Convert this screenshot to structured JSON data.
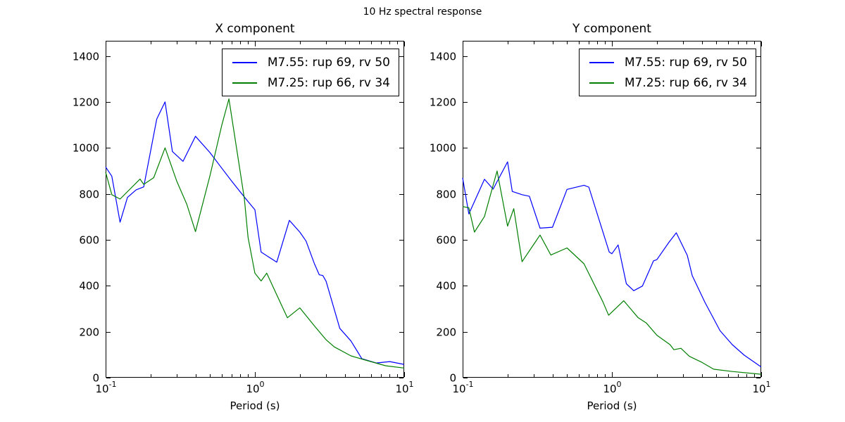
{
  "figure": {
    "suptitle": "10 Hz spectral response"
  },
  "chart_data": [
    {
      "type": "line",
      "title": "X component",
      "xlabel": "Period (s)",
      "ylabel": "",
      "xscale": "log",
      "xlim": [
        0.1,
        10
      ],
      "ylim": [
        0,
        1467
      ],
      "yticks": [
        0,
        200,
        400,
        600,
        800,
        1000,
        1200,
        1400
      ],
      "ytick_labels": [
        "0",
        "200",
        "400",
        "600",
        "800",
        "1000",
        "1200",
        "1400"
      ],
      "xticks_major": [
        0.1,
        1,
        10
      ],
      "xtick_labels": [
        "10^-1",
        "10^0",
        "10^1"
      ],
      "xticks_minor": [
        0.2,
        0.3,
        0.4,
        0.5,
        0.6,
        0.7,
        0.8,
        0.9,
        2,
        3,
        4,
        5,
        6,
        7,
        8,
        9
      ],
      "grid": false,
      "legend_position": "upper right",
      "series": [
        {
          "name": "M7.55: rup 69, rv 50",
          "color": "#0000ff",
          "points": [
            [
              0.1,
              918
            ],
            [
              0.11,
              877
            ],
            [
              0.125,
              677
            ],
            [
              0.14,
              785
            ],
            [
              0.16,
              818
            ],
            [
              0.18,
              831
            ],
            [
              0.22,
              1126
            ],
            [
              0.25,
              1201
            ],
            [
              0.28,
              985
            ],
            [
              0.33,
              942
            ],
            [
              0.4,
              1051
            ],
            [
              0.5,
              980
            ],
            [
              0.6,
              912
            ],
            [
              0.7,
              855
            ],
            [
              0.8,
              808
            ],
            [
              0.9,
              767
            ],
            [
              1.0,
              731
            ],
            [
              1.1,
              547
            ],
            [
              1.4,
              503
            ],
            [
              1.7,
              685
            ],
            [
              2.0,
              634
            ],
            [
              2.2,
              595
            ],
            [
              2.5,
              497
            ],
            [
              2.7,
              448
            ],
            [
              2.85,
              445
            ],
            [
              3.0,
              420
            ],
            [
              3.7,
              215
            ],
            [
              4.4,
              160
            ],
            [
              5.2,
              83
            ],
            [
              6.5,
              64
            ],
            [
              8.0,
              70
            ],
            [
              10,
              58
            ]
          ]
        },
        {
          "name": "M7.25: rup 66, rv 34",
          "color": "#007f00",
          "points": [
            [
              0.1,
              895
            ],
            [
              0.11,
              797
            ],
            [
              0.125,
              778
            ],
            [
              0.17,
              865
            ],
            [
              0.18,
              842
            ],
            [
              0.21,
              871
            ],
            [
              0.25,
              1001
            ],
            [
              0.3,
              855
            ],
            [
              0.35,
              755
            ],
            [
              0.4,
              636
            ],
            [
              0.5,
              880
            ],
            [
              0.6,
              1100
            ],
            [
              0.67,
              1214
            ],
            [
              0.85,
              780
            ],
            [
              0.9,
              610
            ],
            [
              1.0,
              455
            ],
            [
              1.1,
              421
            ],
            [
              1.2,
              455
            ],
            [
              1.65,
              261
            ],
            [
              2.0,
              304
            ],
            [
              2.5,
              226
            ],
            [
              3.0,
              165
            ],
            [
              3.4,
              134
            ],
            [
              4.4,
              95
            ],
            [
              5.4,
              78
            ],
            [
              7.5,
              52
            ],
            [
              10,
              42
            ]
          ]
        }
      ]
    },
    {
      "type": "line",
      "title": "Y component",
      "xlabel": "Period (s)",
      "ylabel": "",
      "xscale": "log",
      "xlim": [
        0.1,
        10
      ],
      "ylim": [
        0,
        1467
      ],
      "yticks": [
        0,
        200,
        400,
        600,
        800,
        1000,
        1200,
        1400
      ],
      "ytick_labels": [
        "0",
        "200",
        "400",
        "600",
        "800",
        "1000",
        "1200",
        "1400"
      ],
      "xticks_major": [
        0.1,
        1,
        10
      ],
      "xtick_labels": [
        "10^-1",
        "10^0",
        "10^1"
      ],
      "xticks_minor": [
        0.2,
        0.3,
        0.4,
        0.5,
        0.6,
        0.7,
        0.8,
        0.9,
        2,
        3,
        4,
        5,
        6,
        7,
        8,
        9
      ],
      "grid": false,
      "legend_position": "upper right",
      "series": [
        {
          "name": "M7.55: rup 69, rv 50",
          "color": "#0000ff",
          "points": [
            [
              0.1,
              870
            ],
            [
              0.11,
              713
            ],
            [
              0.14,
              864
            ],
            [
              0.16,
              821
            ],
            [
              0.2,
              940
            ],
            [
              0.215,
              811
            ],
            [
              0.25,
              797
            ],
            [
              0.28,
              790
            ],
            [
              0.33,
              651
            ],
            [
              0.4,
              655
            ],
            [
              0.5,
              820
            ],
            [
              0.65,
              838
            ],
            [
              0.7,
              830
            ],
            [
              0.96,
              547
            ],
            [
              1.0,
              540
            ],
            [
              1.1,
              578
            ],
            [
              1.25,
              409
            ],
            [
              1.4,
              379
            ],
            [
              1.6,
              399
            ],
            [
              1.9,
              509
            ],
            [
              2.0,
              514
            ],
            [
              2.4,
              588
            ],
            [
              2.7,
              631
            ],
            [
              3.2,
              532
            ],
            [
              3.45,
              445
            ],
            [
              4.2,
              328
            ],
            [
              5.3,
              205
            ],
            [
              6.4,
              144
            ],
            [
              7.7,
              98
            ],
            [
              10,
              47
            ]
          ]
        },
        {
          "name": "M7.25: rup 66, rv 34",
          "color": "#007f00",
          "points": [
            [
              0.1,
              745
            ],
            [
              0.11,
              740
            ],
            [
              0.12,
              634
            ],
            [
              0.14,
              702
            ],
            [
              0.17,
              900
            ],
            [
              0.2,
              660
            ],
            [
              0.22,
              736
            ],
            [
              0.25,
              505
            ],
            [
              0.33,
              621
            ],
            [
              0.39,
              534
            ],
            [
              0.5,
              565
            ],
            [
              0.65,
              496
            ],
            [
              0.87,
              330
            ],
            [
              0.95,
              272
            ],
            [
              1.2,
              335
            ],
            [
              1.5,
              261
            ],
            [
              1.7,
              238
            ],
            [
              2.0,
              185
            ],
            [
              2.45,
              144
            ],
            [
              2.6,
              122
            ],
            [
              2.9,
              128
            ],
            [
              3.3,
              93
            ],
            [
              4.0,
              67
            ],
            [
              4.8,
              37
            ],
            [
              6.4,
              27
            ],
            [
              10,
              15
            ]
          ]
        }
      ]
    }
  ]
}
